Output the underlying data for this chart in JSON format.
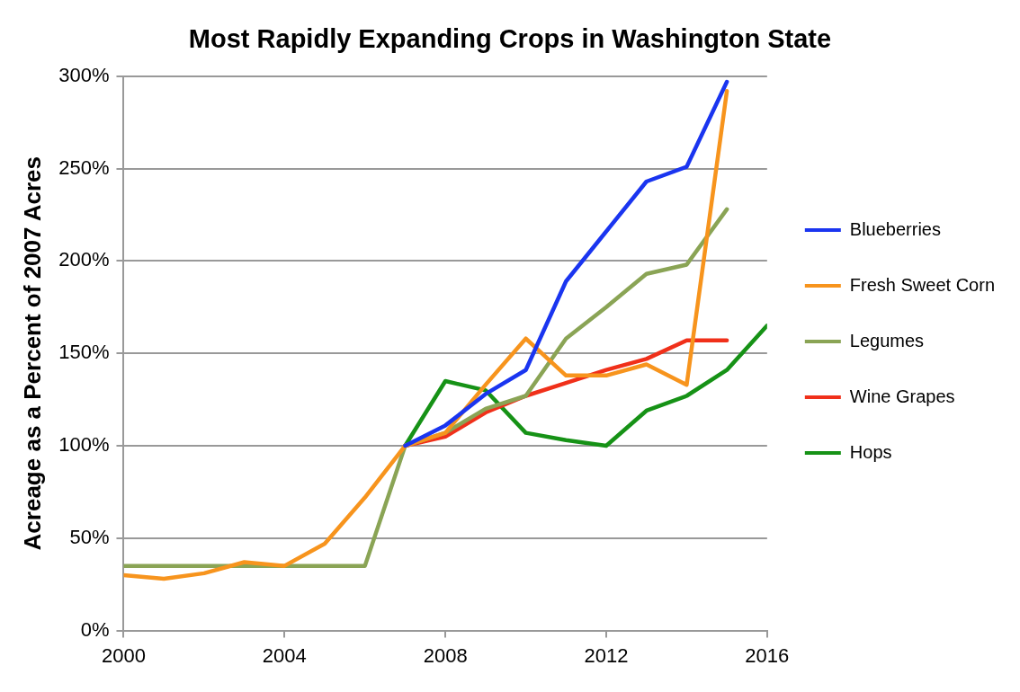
{
  "chart_data": {
    "type": "line",
    "title": "Most Rapidly Expanding Crops in Washington State",
    "ylabel": "Acreage as a Percent of 2007 Acres",
    "x": [
      2000,
      2001,
      2002,
      2003,
      2004,
      2005,
      2006,
      2007,
      2008,
      2009,
      2010,
      2011,
      2012,
      2013,
      2014,
      2015,
      2016
    ],
    "series": [
      {
        "name": "Blueberries",
        "color": "#1a35f0",
        "values": [
          null,
          null,
          null,
          null,
          null,
          null,
          null,
          100,
          111,
          128,
          141,
          189,
          216,
          243,
          251,
          297,
          null
        ]
      },
      {
        "name": "Fresh Sweet Corn",
        "color": "#f7941d",
        "values": [
          30,
          28,
          31,
          37,
          35,
          47,
          72,
          100,
          107,
          133,
          158,
          138,
          138,
          144,
          133,
          292,
          null
        ]
      },
      {
        "name": "Legumes",
        "color": "#8aa455",
        "values": [
          35,
          35,
          35,
          35,
          35,
          35,
          35,
          100,
          107,
          120,
          127,
          158,
          175,
          193,
          198,
          228,
          null
        ]
      },
      {
        "name": "Wine Grapes",
        "color": "#f0301a",
        "values": [
          null,
          null,
          null,
          null,
          null,
          null,
          null,
          100,
          105,
          118,
          127,
          134,
          141,
          147,
          157,
          157,
          null
        ]
      },
      {
        "name": "Hops",
        "color": "#169216",
        "values": [
          null,
          null,
          null,
          null,
          null,
          null,
          null,
          100,
          135,
          130,
          107,
          103,
          100,
          119,
          127,
          141,
          165
        ]
      }
    ],
    "xlim": [
      2000,
      2016
    ],
    "xticks": [
      2000,
      2004,
      2008,
      2012,
      2016
    ],
    "ylim": [
      0,
      300
    ],
    "yticks": [
      {
        "value": 0,
        "label": "0%"
      },
      {
        "value": 50,
        "label": "50%"
      },
      {
        "value": 100,
        "label": "100%"
      },
      {
        "value": 150,
        "label": "150%"
      },
      {
        "value": 200,
        "label": "200%"
      },
      {
        "value": 250,
        "label": "250%"
      },
      {
        "value": 300,
        "label": "300%"
      }
    ],
    "grid": "y",
    "legend": "right",
    "marker": "none",
    "line_style": "solid"
  }
}
